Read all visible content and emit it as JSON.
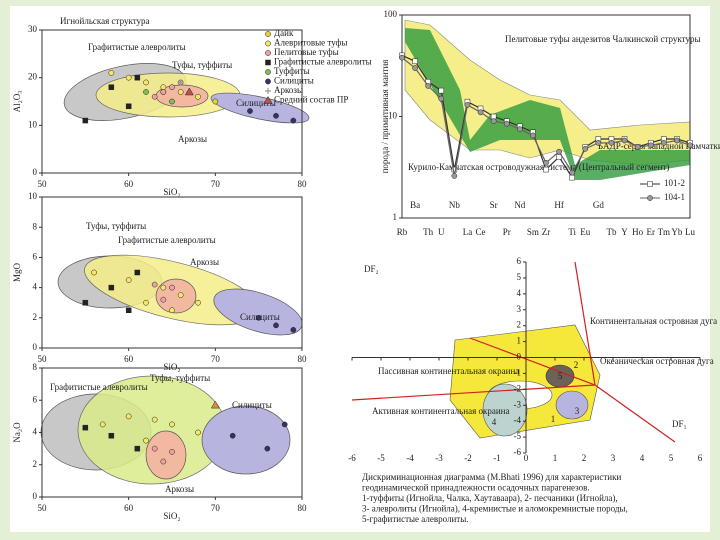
{
  "chart_data": [
    {
      "type": "scatter",
      "title": "Игнойльская структура",
      "x_label": "SiO₂",
      "y_label": "Al₂O₃",
      "xlim": [
        50,
        80
      ],
      "ylim": [
        0,
        30
      ],
      "xticks": [
        50,
        60,
        70,
        80
      ],
      "yticks": [
        0,
        10,
        20,
        30
      ],
      "annotations": [
        "Графитистые алевролиты",
        "Туфы, туффиты",
        "Силициты",
        "Аркозы"
      ],
      "series": [
        {
          "name": "Дайк",
          "color": "#e6d23c",
          "marker": "circle",
          "x": [
            70,
            64
          ],
          "values": [
            15,
            17
          ]
        },
        {
          "name": "Алевритовые туфы",
          "color": "#f4e76a",
          "marker": "circle",
          "x": [
            60,
            62,
            64,
            66,
            58,
            68
          ],
          "values": [
            20,
            19,
            18,
            17,
            21,
            16
          ]
        },
        {
          "name": "Пелитовые туфы",
          "color": "#f0a0a0",
          "marker": "circle",
          "x": [
            64,
            65,
            66,
            63
          ],
          "values": [
            17,
            18,
            19,
            16
          ]
        },
        {
          "name": "Графитистые алевролиты",
          "color": "#222222",
          "marker": "square",
          "x": [
            55,
            58,
            60,
            61
          ],
          "values": [
            11,
            18,
            14,
            20
          ]
        },
        {
          "name": "Туффиты",
          "color": "#7fbf4f",
          "marker": "circle",
          "x": [
            62,
            65
          ],
          "values": [
            17,
            15
          ]
        },
        {
          "name": "Силициты",
          "color": "#333366",
          "marker": "circle",
          "x": [
            74,
            77,
            79
          ],
          "values": [
            13,
            12,
            11
          ]
        },
        {
          "name": "Аркозы",
          "color": "#999999",
          "marker": "plus",
          "x": [
            66,
            67
          ],
          "values": [
            19,
            17
          ]
        },
        {
          "name": "Средний состав ПР",
          "color": "#c0504d",
          "marker": "triangle",
          "x": [
            67
          ],
          "values": [
            17
          ]
        }
      ]
    },
    {
      "type": "scatter",
      "x_label": "SiO₂",
      "y_label": "MgO",
      "xlim": [
        50,
        80
      ],
      "ylim": [
        0,
        10
      ],
      "xticks": [
        50,
        60,
        70,
        80
      ],
      "yticks": [
        0,
        2,
        4,
        6,
        8,
        10
      ],
      "annotations": [
        "Туфы, туффиты",
        "Графитистые алевролиты",
        "Аркозы",
        "Силициты"
      ],
      "series": [
        {
          "color": "#222222",
          "marker": "square",
          "x": [
            55,
            58,
            61,
            60
          ],
          "values": [
            3,
            4,
            5,
            2.5
          ]
        },
        {
          "color": "#f4e76a",
          "marker": "circle",
          "x": [
            56,
            60,
            64,
            66,
            62,
            68,
            65
          ],
          "values": [
            5,
            4.5,
            4,
            3.5,
            3,
            3,
            2.5
          ]
        },
        {
          "color": "#f0a0a0",
          "marker": "circle",
          "x": [
            64,
            65,
            63
          ],
          "values": [
            3.2,
            4,
            4.2
          ]
        },
        {
          "color": "#333366",
          "marker": "circle",
          "x": [
            75,
            77,
            79
          ],
          "values": [
            2,
            1.5,
            1.2
          ]
        }
      ]
    },
    {
      "type": "scatter",
      "x_label": "SiO₂",
      "y_label": "Na₂O",
      "xlim": [
        50,
        80
      ],
      "ylim": [
        0,
        8
      ],
      "xticks": [
        50,
        60,
        70,
        80
      ],
      "yticks": [
        0,
        2,
        4,
        6,
        8
      ],
      "annotations": [
        "Графитистые алевролиты",
        "Туфы, туффиты",
        "Силициты",
        "Аркозы"
      ],
      "series": [
        {
          "color": "#222222",
          "marker": "square",
          "x": [
            55,
            58,
            61
          ],
          "values": [
            4.3,
            3.8,
            3
          ]
        },
        {
          "color": "#f4e76a",
          "marker": "circle",
          "x": [
            57,
            60,
            63,
            65,
            62,
            68
          ],
          "values": [
            4.5,
            5,
            4.8,
            4.5,
            3.5,
            4
          ]
        },
        {
          "color": "#f0a0a0",
          "marker": "circle",
          "x": [
            63,
            64,
            65
          ],
          "values": [
            3,
            2.2,
            2.8
          ]
        },
        {
          "color": "#333366",
          "marker": "circle",
          "x": [
            72,
            76,
            78
          ],
          "values": [
            3.8,
            3,
            4.5
          ]
        },
        {
          "color": "#e08a3a",
          "marker": "triangle",
          "x": [
            70
          ],
          "values": [
            5.7
          ]
        }
      ]
    },
    {
      "type": "line",
      "title": "Пелитовые туфы андезитов Чалкинской структуры",
      "y_label": "порода / примитивная мантия",
      "log_y": true,
      "ylim": [
        1,
        100
      ],
      "yticks": [
        1,
        10,
        100
      ],
      "annotations": [
        "БАДР-серия Западной Камчатки",
        "Курило-Камчатская островодужная система (Центральный сегмент)"
      ],
      "categories": [
        "Rb",
        "Ba",
        "Th",
        "U",
        "Nb",
        "La",
        "Ce",
        "Sr",
        "Pr",
        "Nd",
        "Sm",
        "Zr",
        "Hf",
        "Ti",
        "Eu",
        "Gd",
        "Tb",
        "Y",
        "Ho",
        "Er",
        "Tm",
        "Yb",
        "Lu"
      ],
      "series": [
        {
          "name": "101-2",
          "color": "#333333",
          "marker": "square",
          "values": [
            40,
            35,
            22,
            18,
            3,
            14,
            12,
            10,
            9,
            8,
            7,
            3,
            4,
            2.5,
            5,
            6,
            6,
            6,
            5,
            5.5,
            6,
            6,
            5.5
          ]
        },
        {
          "name": "104-1",
          "color": "#666666",
          "marker": "circle",
          "values": [
            38,
            30,
            20,
            15,
            2.6,
            13,
            11,
            9,
            8.5,
            7.5,
            6.5,
            3.5,
            4.5,
            2.8,
            4.8,
            5.5,
            5.5,
            5.8,
            5,
            5.2,
            5.5,
            5.8,
            5.2
          ]
        }
      ]
    },
    {
      "type": "discriminant",
      "x_label": "DF₁",
      "y_label": "DF₂",
      "xlim": [
        -6,
        6
      ],
      "ylim": [
        -6,
        6
      ],
      "xticks": [
        -6,
        -5,
        -4,
        -3,
        -2,
        -1,
        0,
        1,
        2,
        3,
        4,
        5,
        6
      ],
      "yticks": [
        -6,
        -5,
        -4,
        -3,
        -2,
        -1,
        0,
        1,
        2,
        3,
        4,
        5,
        6
      ],
      "annotations": [
        "Континентальная островная дуга",
        "Пассивная континентальная окраина",
        "Океаническая островная дуга",
        "Активная континентальная окраина"
      ],
      "field_labels": [
        "1",
        "2",
        "3",
        "4",
        "5"
      ],
      "caption": [
        "Дискриминационная диаграмма (M.Bhati 1996) для характеристики",
        "геодинамической принадлежности осадочных парагенезов.",
        "1-туффиты (Игнойла, Чалка, Хаутаваара), 2- песчаники (Игнойла),",
        "3- алевролиты (Игнойла), 4-кремнистые и аломокремнистые породы,",
        "5-графитистые алевролиты."
      ]
    }
  ]
}
